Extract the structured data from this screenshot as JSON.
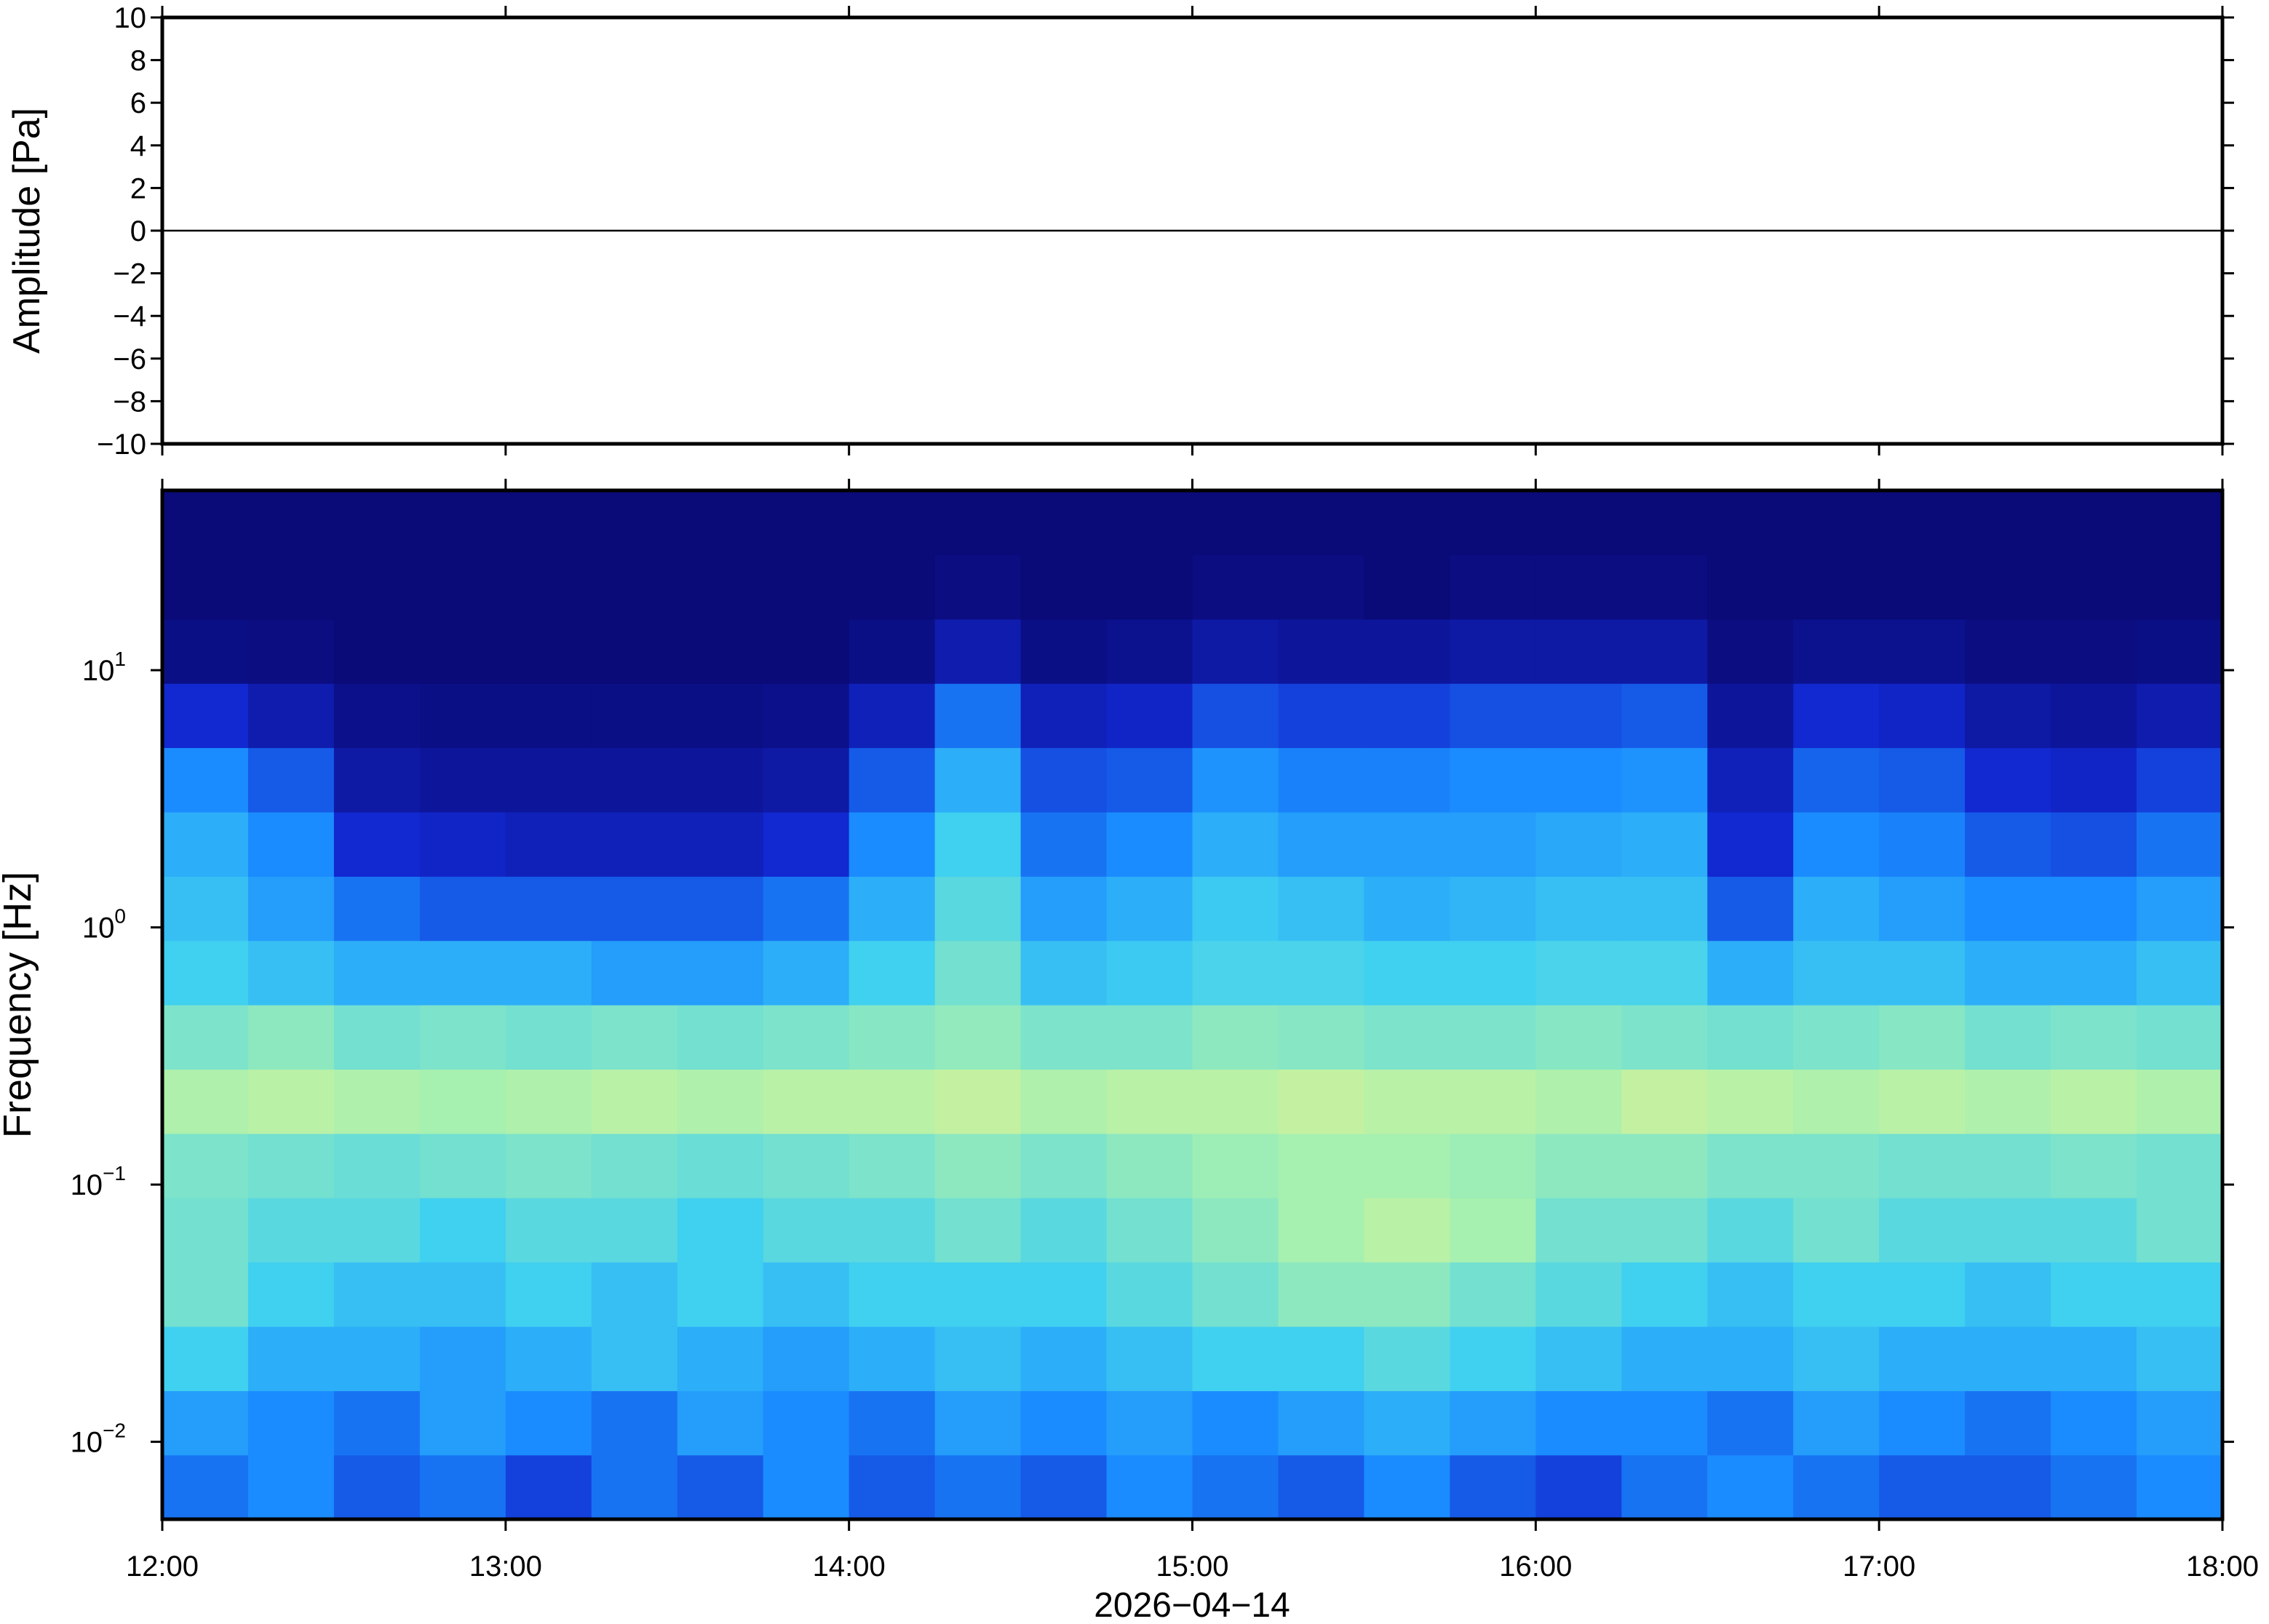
{
  "chart_data": [
    {
      "type": "line",
      "ylabel": "Amplitude [Pa]",
      "x": [
        "12:00",
        "12:30",
        "13:00",
        "13:30",
        "14:00",
        "14:30",
        "15:00",
        "15:30",
        "16:00",
        "16:30",
        "17:00",
        "17:30",
        "18:00"
      ],
      "values": [
        0,
        0,
        0,
        0,
        0,
        0,
        0,
        0,
        0,
        0,
        0,
        0,
        0
      ],
      "color": "#000000",
      "xlim": [
        "12:00",
        "18:00"
      ],
      "ylim": [
        -10,
        10
      ],
      "yticks": [
        {
          "value": -10,
          "label": "−10"
        },
        {
          "value": -8,
          "label": "−8"
        },
        {
          "value": -6,
          "label": "−6"
        },
        {
          "value": -4,
          "label": "−4"
        },
        {
          "value": -2,
          "label": "−2"
        },
        0,
        2,
        4,
        6,
        8,
        10
      ]
    },
    {
      "type": "spectrogram",
      "ylabel": "Frequency [Hz]",
      "xlabel": "2026−04−14",
      "log_y": true,
      "xlim": [
        "12:00",
        "18:00"
      ],
      "xticks": [
        "12:00",
        "13:00",
        "14:00",
        "15:00",
        "16:00",
        "17:00",
        "18:00"
      ],
      "ylim": [
        0.005,
        50
      ],
      "yticks": [
        {
          "value": 0.01,
          "label": "10",
          "exponent": "−2"
        },
        {
          "value": 0.1,
          "label": "10",
          "exponent": "−1"
        },
        {
          "value": 1,
          "label": "10",
          "exponent": "0"
        },
        {
          "value": 10,
          "label": "10",
          "exponent": "1"
        }
      ],
      "time_edges": [
        "12:00",
        "12:15",
        "12:30",
        "12:45",
        "13:00",
        "13:15",
        "13:30",
        "13:45",
        "14:00",
        "14:15",
        "14:30",
        "14:45",
        "15:00",
        "15:15",
        "15:30",
        "15:45",
        "16:00",
        "16:15",
        "16:30",
        "16:45",
        "17:00",
        "17:15",
        "17:30",
        "17:45",
        "18:00"
      ],
      "freq_edges": [
        0.005,
        0.00889,
        0.0158,
        0.0281,
        0.05,
        0.0889,
        0.158,
        0.281,
        0.5,
        0.889,
        1.58,
        2.81,
        5,
        8.89,
        15.8,
        28.1,
        50
      ],
      "clim": [
        0,
        1
      ],
      "colormap": [
        "#0a0a78",
        "#1228d0",
        "#1a8cff",
        "#40d0f0",
        "#a6f0b0",
        "#f2f28a"
      ],
      "z": [
        [
          0.35,
          0.4,
          0.3,
          0.35,
          0.25,
          0.35,
          0.3,
          0.4,
          0.3,
          0.35,
          0.3,
          0.4,
          0.35,
          0.3,
          0.4,
          0.3,
          0.25,
          0.35,
          0.4,
          0.35,
          0.3,
          0.3,
          0.35,
          0.4
        ],
        [
          0.45,
          0.4,
          0.35,
          0.45,
          0.4,
          0.35,
          0.45,
          0.4,
          0.35,
          0.45,
          0.4,
          0.45,
          0.4,
          0.45,
          0.5,
          0.45,
          0.4,
          0.4,
          0.35,
          0.45,
          0.4,
          0.35,
          0.4,
          0.45
        ],
        [
          0.6,
          0.5,
          0.5,
          0.45,
          0.5,
          0.55,
          0.5,
          0.45,
          0.5,
          0.55,
          0.5,
          0.55,
          0.6,
          0.6,
          0.65,
          0.6,
          0.55,
          0.5,
          0.5,
          0.55,
          0.5,
          0.5,
          0.5,
          0.55
        ],
        [
          0.7,
          0.6,
          0.55,
          0.55,
          0.6,
          0.55,
          0.6,
          0.55,
          0.6,
          0.6,
          0.6,
          0.65,
          0.7,
          0.75,
          0.75,
          0.7,
          0.65,
          0.6,
          0.55,
          0.6,
          0.6,
          0.55,
          0.6,
          0.6
        ],
        [
          0.7,
          0.65,
          0.65,
          0.6,
          0.65,
          0.65,
          0.6,
          0.65,
          0.65,
          0.7,
          0.65,
          0.7,
          0.75,
          0.8,
          0.85,
          0.8,
          0.7,
          0.7,
          0.65,
          0.7,
          0.65,
          0.65,
          0.65,
          0.7
        ],
        [
          0.72,
          0.7,
          0.68,
          0.7,
          0.72,
          0.7,
          0.68,
          0.7,
          0.72,
          0.75,
          0.72,
          0.75,
          0.78,
          0.8,
          0.8,
          0.78,
          0.75,
          0.75,
          0.72,
          0.72,
          0.7,
          0.7,
          0.72,
          0.7
        ],
        [
          0.82,
          0.85,
          0.82,
          0.8,
          0.82,
          0.85,
          0.82,
          0.85,
          0.85,
          0.88,
          0.82,
          0.85,
          0.85,
          0.88,
          0.85,
          0.85,
          0.82,
          0.88,
          0.85,
          0.82,
          0.85,
          0.82,
          0.85,
          0.82
        ],
        [
          0.72,
          0.75,
          0.7,
          0.72,
          0.7,
          0.72,
          0.7,
          0.72,
          0.74,
          0.76,
          0.72,
          0.72,
          0.75,
          0.74,
          0.72,
          0.72,
          0.74,
          0.72,
          0.7,
          0.72,
          0.74,
          0.7,
          0.72,
          0.7
        ],
        [
          0.6,
          0.55,
          0.5,
          0.5,
          0.5,
          0.45,
          0.45,
          0.5,
          0.6,
          0.7,
          0.55,
          0.58,
          0.62,
          0.62,
          0.6,
          0.6,
          0.62,
          0.62,
          0.5,
          0.55,
          0.55,
          0.5,
          0.5,
          0.55
        ],
        [
          0.55,
          0.45,
          0.35,
          0.3,
          0.3,
          0.3,
          0.3,
          0.35,
          0.5,
          0.65,
          0.45,
          0.5,
          0.58,
          0.55,
          0.5,
          0.52,
          0.55,
          0.55,
          0.3,
          0.5,
          0.45,
          0.4,
          0.4,
          0.45
        ],
        [
          0.5,
          0.4,
          0.2,
          0.18,
          0.15,
          0.15,
          0.15,
          0.2,
          0.4,
          0.6,
          0.35,
          0.4,
          0.5,
          0.45,
          0.45,
          0.45,
          0.48,
          0.5,
          0.2,
          0.4,
          0.38,
          0.3,
          0.28,
          0.35
        ],
        [
          0.4,
          0.3,
          0.1,
          0.08,
          0.08,
          0.08,
          0.08,
          0.1,
          0.3,
          0.5,
          0.28,
          0.3,
          0.42,
          0.38,
          0.38,
          0.4,
          0.4,
          0.42,
          0.15,
          0.32,
          0.3,
          0.2,
          0.18,
          0.25
        ],
        [
          0.2,
          0.12,
          0.04,
          0.03,
          0.03,
          0.03,
          0.03,
          0.04,
          0.15,
          0.35,
          0.15,
          0.18,
          0.28,
          0.25,
          0.25,
          0.28,
          0.28,
          0.3,
          0.08,
          0.2,
          0.18,
          0.1,
          0.08,
          0.12
        ],
        [
          0.03,
          0.02,
          0,
          0,
          0,
          0,
          0,
          0,
          0.03,
          0.12,
          0.03,
          0.05,
          0.1,
          0.08,
          0.08,
          0.1,
          0.1,
          0.1,
          0.02,
          0.05,
          0.05,
          0.02,
          0.02,
          0.03
        ],
        [
          0,
          0,
          0,
          0,
          0,
          0,
          0,
          0,
          0,
          0.02,
          0,
          0,
          0.02,
          0.02,
          0,
          0.02,
          0.02,
          0.02,
          0,
          0,
          0,
          0,
          0,
          0
        ],
        [
          0,
          0,
          0,
          0,
          0,
          0,
          0,
          0,
          0,
          0,
          0,
          0,
          0,
          0,
          0,
          0,
          0,
          0,
          0,
          0,
          0,
          0,
          0,
          0
        ]
      ]
    }
  ]
}
